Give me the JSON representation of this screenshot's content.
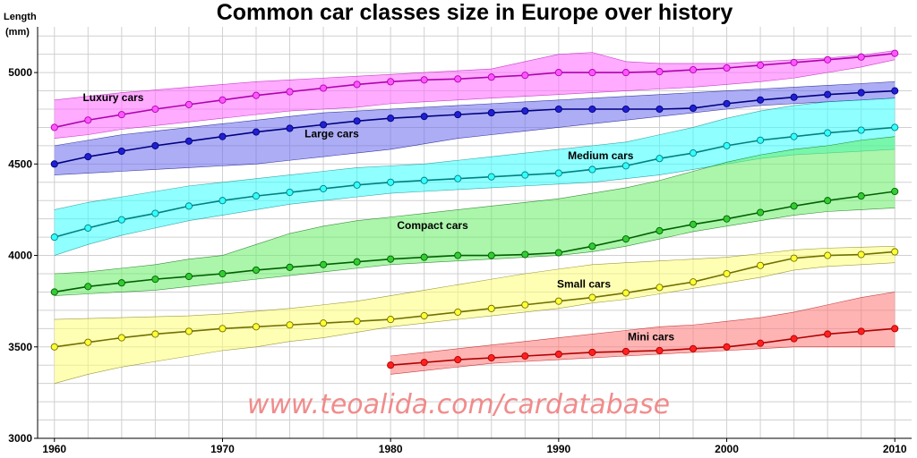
{
  "chart_data": {
    "type": "line",
    "title": "Common car classes size in Europe over history",
    "ylabel_line1": "Length",
    "ylabel_line2": "(mm)",
    "xlabel": "",
    "xlim": [
      1959,
      2011
    ],
    "ylim": [
      3000,
      5250
    ],
    "x_ticks": [
      1960,
      1970,
      1980,
      1990,
      2000,
      2010
    ],
    "y_ticks": [
      3000,
      3500,
      4000,
      4500,
      5000
    ],
    "grid": true,
    "watermark": "www.teoalida.com/cardatabase",
    "series": [
      {
        "name": "Luxury cars",
        "line_color": "#b000b0",
        "marker_color": "#ff55ff",
        "band_color": "#ff66ff",
        "label_at": [
          1963.5,
          4845
        ],
        "x": [
          1960,
          1962,
          1964,
          1966,
          1968,
          1970,
          1972,
          1974,
          1976,
          1978,
          1980,
          1982,
          1984,
          1986,
          1988,
          1990,
          1992,
          1994,
          1996,
          1998,
          2000,
          2002,
          2004,
          2006,
          2008,
          2010
        ],
        "y": [
          4700,
          4740,
          4770,
          4800,
          4825,
          4850,
          4875,
          4895,
          4915,
          4935,
          4950,
          4960,
          4965,
          4975,
          4985,
          5000,
          5000,
          5000,
          5005,
          5015,
          5025,
          5040,
          5055,
          5070,
          5085,
          5105
        ],
        "upper": [
          4850,
          4870,
          4890,
          4905,
          4920,
          4935,
          4950,
          4960,
          4970,
          4980,
          4990,
          5000,
          5010,
          5020,
          5060,
          5100,
          5110,
          5060,
          5050,
          5050,
          5050,
          5060,
          5070,
          5080,
          5095,
          5120
        ],
        "lower": [
          4640,
          4660,
          4690,
          4710,
          4730,
          4750,
          4770,
          4790,
          4800,
          4810,
          4830,
          4840,
          4850,
          4860,
          4870,
          4880,
          4890,
          4900,
          4910,
          4920,
          4935,
          4950,
          4970,
          5000,
          5030,
          5070
        ]
      },
      {
        "name": "Large cars",
        "line_color": "#000080",
        "marker_color": "#2020d0",
        "band_color": "#6a6aee",
        "label_at": [
          1976.5,
          4645
        ],
        "x": [
          1960,
          1962,
          1964,
          1966,
          1968,
          1970,
          1972,
          1974,
          1976,
          1978,
          1980,
          1982,
          1984,
          1986,
          1988,
          1990,
          1992,
          1994,
          1996,
          1998,
          2000,
          2002,
          2004,
          2006,
          2008,
          2010
        ],
        "y": [
          4500,
          4540,
          4570,
          4600,
          4625,
          4650,
          4675,
          4695,
          4715,
          4735,
          4750,
          4760,
          4770,
          4780,
          4790,
          4800,
          4800,
          4800,
          4800,
          4805,
          4830,
          4850,
          4865,
          4880,
          4890,
          4900
        ],
        "upper": [
          4600,
          4630,
          4660,
          4680,
          4700,
          4720,
          4740,
          4760,
          4780,
          4790,
          4800,
          4810,
          4820,
          4830,
          4840,
          4850,
          4860,
          4870,
          4880,
          4890,
          4900,
          4910,
          4920,
          4930,
          4940,
          4950
        ],
        "lower": [
          4440,
          4450,
          4460,
          4470,
          4480,
          4490,
          4500,
          4520,
          4540,
          4560,
          4580,
          4610,
          4640,
          4660,
          4680,
          4700,
          4720,
          4740,
          4760,
          4780,
          4800,
          4820,
          4830,
          4840,
          4850,
          4860
        ]
      },
      {
        "name": "Medium cars",
        "line_color": "#008080",
        "marker_color": "#33ffff",
        "band_color": "#33ffff",
        "label_at": [
          1992.5,
          4525
        ],
        "x": [
          1960,
          1962,
          1964,
          1966,
          1968,
          1970,
          1972,
          1974,
          1976,
          1978,
          1980,
          1982,
          1984,
          1986,
          1988,
          1990,
          1992,
          1994,
          1996,
          1998,
          2000,
          2002,
          2004,
          2006,
          2008,
          2010
        ],
        "y": [
          4100,
          4150,
          4195,
          4230,
          4270,
          4300,
          4325,
          4345,
          4365,
          4385,
          4400,
          4410,
          4420,
          4430,
          4440,
          4450,
          4470,
          4490,
          4530,
          4560,
          4600,
          4630,
          4650,
          4670,
          4685,
          4700
        ],
        "upper": [
          4250,
          4290,
          4320,
          4350,
          4380,
          4400,
          4420,
          4440,
          4460,
          4480,
          4490,
          4500,
          4520,
          4540,
          4560,
          4580,
          4600,
          4620,
          4660,
          4700,
          4750,
          4790,
          4820,
          4840,
          4850,
          4860
        ],
        "lower": [
          4000,
          4060,
          4110,
          4150,
          4190,
          4220,
          4250,
          4280,
          4300,
          4320,
          4340,
          4350,
          4360,
          4370,
          4380,
          4390,
          4400,
          4420,
          4440,
          4470,
          4500,
          4530,
          4550,
          4560,
          4570,
          4580
        ]
      },
      {
        "name": "Compact cars",
        "line_color": "#006000",
        "marker_color": "#33cc33",
        "band_color": "#66ee66",
        "label_at": [
          1982.5,
          4145
        ],
        "x": [
          1960,
          1962,
          1964,
          1966,
          1968,
          1970,
          1972,
          1974,
          1976,
          1978,
          1980,
          1982,
          1984,
          1986,
          1988,
          1990,
          1992,
          1994,
          1996,
          1998,
          2000,
          2002,
          2004,
          2006,
          2008,
          2010
        ],
        "y": [
          3800,
          3830,
          3850,
          3870,
          3885,
          3900,
          3920,
          3935,
          3950,
          3965,
          3980,
          3990,
          4000,
          4000,
          4005,
          4015,
          4050,
          4090,
          4135,
          4170,
          4200,
          4235,
          4270,
          4300,
          4325,
          4350
        ],
        "upper": [
          3900,
          3910,
          3930,
          3950,
          3980,
          4000,
          4060,
          4120,
          4160,
          4190,
          4210,
          4230,
          4250,
          4270,
          4290,
          4310,
          4340,
          4370,
          4410,
          4460,
          4510,
          4550,
          4580,
          4600,
          4630,
          4650
        ],
        "lower": [
          3780,
          3790,
          3800,
          3810,
          3830,
          3850,
          3870,
          3890,
          3910,
          3930,
          3950,
          3960,
          3970,
          3980,
          3990,
          4000,
          4020,
          4050,
          4090,
          4130,
          4160,
          4190,
          4220,
          4240,
          4250,
          4260
        ]
      },
      {
        "name": "Small cars",
        "line_color": "#707000",
        "marker_color": "#ffff33",
        "band_color": "#ffff77",
        "label_at": [
          1991.5,
          3825
        ],
        "x": [
          1960,
          1962,
          1964,
          1966,
          1968,
          1970,
          1972,
          1974,
          1976,
          1978,
          1980,
          1982,
          1984,
          1986,
          1988,
          1990,
          1992,
          1994,
          1996,
          1998,
          2000,
          2002,
          2004,
          2006,
          2008,
          2010
        ],
        "y": [
          3500,
          3525,
          3550,
          3570,
          3585,
          3600,
          3610,
          3620,
          3630,
          3640,
          3650,
          3670,
          3690,
          3710,
          3730,
          3750,
          3770,
          3795,
          3825,
          3855,
          3900,
          3945,
          3985,
          4000,
          4005,
          4020
        ],
        "upper": [
          3650,
          3655,
          3660,
          3665,
          3670,
          3680,
          3695,
          3710,
          3730,
          3750,
          3780,
          3810,
          3840,
          3870,
          3900,
          3925,
          3950,
          3960,
          3970,
          3980,
          3990,
          4010,
          4030,
          4040,
          4045,
          4050
        ],
        "lower": [
          3300,
          3350,
          3390,
          3420,
          3450,
          3480,
          3500,
          3530,
          3550,
          3580,
          3610,
          3630,
          3650,
          3670,
          3690,
          3710,
          3740,
          3760,
          3790,
          3820,
          3850,
          3880,
          3920,
          3940,
          3950,
          3960
        ]
      },
      {
        "name": "Mini cars",
        "line_color": "#b00000",
        "marker_color": "#ff2020",
        "band_color": "#ff7777",
        "label_at": [
          1995.5,
          3535
        ],
        "x": [
          1980,
          1982,
          1984,
          1986,
          1988,
          1990,
          1992,
          1994,
          1996,
          1998,
          2000,
          2002,
          2004,
          2006,
          2008,
          2010
        ],
        "y": [
          3400,
          3415,
          3430,
          3440,
          3450,
          3460,
          3470,
          3475,
          3480,
          3490,
          3500,
          3520,
          3545,
          3570,
          3585,
          3600
        ],
        "upper": [
          3450,
          3470,
          3490,
          3510,
          3530,
          3550,
          3570,
          3590,
          3610,
          3620,
          3640,
          3660,
          3690,
          3730,
          3770,
          3800
        ],
        "lower": [
          3350,
          3370,
          3390,
          3410,
          3420,
          3430,
          3440,
          3450,
          3460,
          3470,
          3480,
          3490,
          3500,
          3500,
          3500,
          3500
        ]
      }
    ]
  }
}
